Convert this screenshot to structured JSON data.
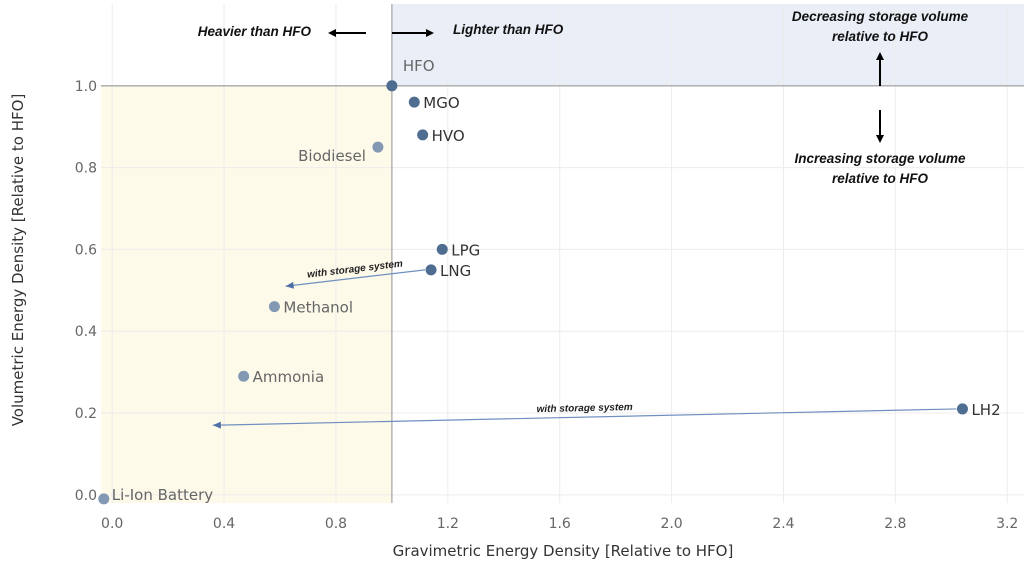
{
  "chart_data": {
    "type": "scatter",
    "title": "",
    "xlabel": "Gravimetric Energy Density [Relative to HFO]",
    "ylabel": "Volumetric Energy Density [Relative to HFO]",
    "xlim": [
      -0.04,
      3.26
    ],
    "ylim": [
      -0.02,
      1.2
    ],
    "xticks": [
      "0.0",
      "0.4",
      "0.8",
      "1.2",
      "1.6",
      "2.0",
      "2.4",
      "2.8",
      "3.2"
    ],
    "yticks": [
      "0.0",
      "0.2",
      "0.4",
      "0.6",
      "0.8",
      "1.0"
    ],
    "grid": true,
    "points": [
      {
        "label": "HFO",
        "x": 1.0,
        "y": 1.0,
        "color": "#4f6d91"
      },
      {
        "label": "MGO",
        "x": 1.08,
        "y": 0.96,
        "color": "#4f6d91"
      },
      {
        "label": "HVO",
        "x": 1.11,
        "y": 0.88,
        "color": "#4f6d91"
      },
      {
        "label": "Biodiesel",
        "x": 0.95,
        "y": 0.85,
        "color": "#8298b3"
      },
      {
        "label": "LPG",
        "x": 1.18,
        "y": 0.6,
        "color": "#4f6d91"
      },
      {
        "label": "LNG",
        "x": 1.14,
        "y": 0.55,
        "color": "#4f6d91"
      },
      {
        "label": "Methanol",
        "x": 0.58,
        "y": 0.46,
        "color": "#8298b3"
      },
      {
        "label": "Ammonia",
        "x": 0.47,
        "y": 0.29,
        "color": "#8298b3"
      },
      {
        "label": "LH2",
        "x": 3.04,
        "y": 0.21,
        "color": "#4f6d91"
      },
      {
        "label": "Li-Ion Battery",
        "x": -0.03,
        "y": -0.01,
        "color": "#8298b3"
      }
    ],
    "storage_arrows": [
      {
        "from": "LNG",
        "to_x": 0.62,
        "to_y": 0.51,
        "label": "with storage system"
      },
      {
        "from": "LH2",
        "to_x": 0.36,
        "to_y": 0.17,
        "label": "with storage system"
      }
    ],
    "regions": [
      {
        "name": "heavier-region",
        "x": [
          -0.04,
          1.0
        ],
        "y": [
          -0.02,
          1.0
        ],
        "color": "#fdfaea"
      },
      {
        "name": "lighter-region",
        "x": [
          1.0,
          3.26
        ],
        "y": [
          1.0,
          1.2
        ],
        "color": "#e9eef7"
      }
    ],
    "annotations": {
      "heavier": "Heavier than HFO",
      "lighter": "Lighter than HFO",
      "decreasing_line1": "Decreasing storage volume",
      "decreasing_line2": "relative to HFO",
      "increasing_line1": "Increasing storage volume",
      "increasing_line2": "relative to HFO"
    }
  }
}
